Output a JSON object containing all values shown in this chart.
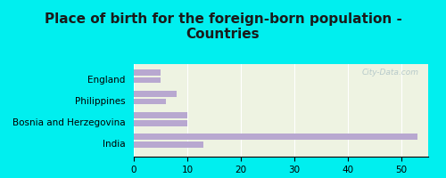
{
  "title": "Place of birth for the foreign-born population -\nCountries",
  "categories": [
    "India",
    "Bosnia and Herzegovina",
    "Philippines",
    "England"
  ],
  "values_upper": [
    53,
    10,
    8,
    5
  ],
  "values_lower": [
    13,
    10,
    6,
    5
  ],
  "bar_color": "#b8a8d0",
  "background_color": "#00efef",
  "plot_bg_color": "#eef3e2",
  "xlim": [
    0,
    55
  ],
  "xticks": [
    0,
    10,
    20,
    30,
    40,
    50
  ],
  "bar_height": 0.28,
  "title_fontsize": 11,
  "tick_fontsize": 7.5,
  "label_fontsize": 7.5,
  "watermark": "City-Data.com"
}
